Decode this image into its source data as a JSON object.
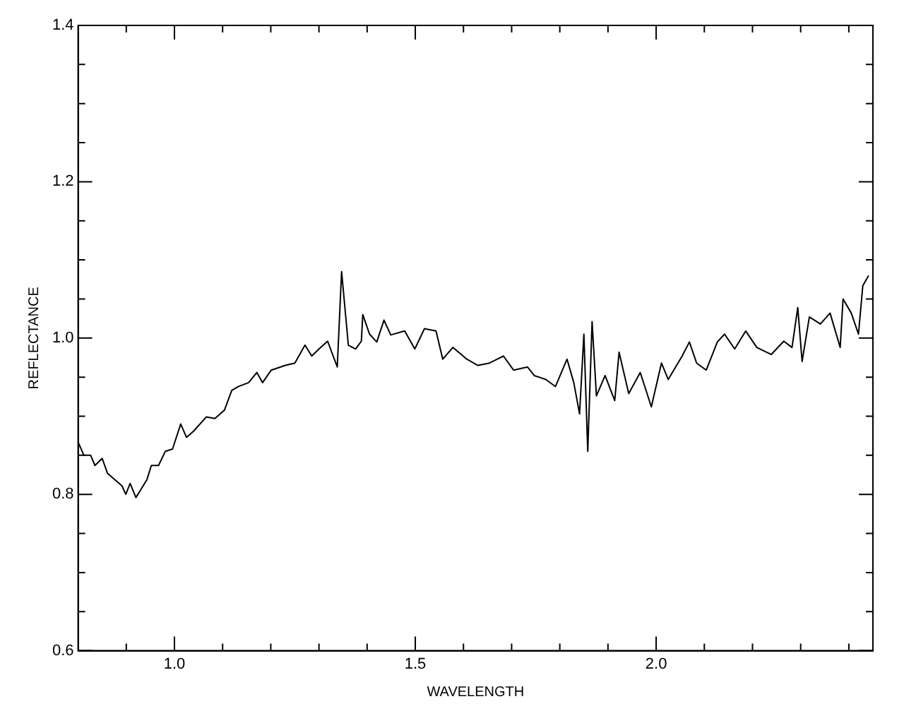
{
  "chart_data": {
    "type": "line",
    "xlabel": "WAVELENGTH",
    "ylabel": "REFLECTANCE",
    "xlim": [
      0.8,
      2.45
    ],
    "ylim": [
      0.6,
      1.4
    ],
    "xticks": [
      {
        "value": 0.9,
        "label": null
      },
      {
        "value": 1.0,
        "label": "1.0"
      },
      {
        "value": 1.1,
        "label": null
      },
      {
        "value": 1.2,
        "label": null
      },
      {
        "value": 1.3,
        "label": null
      },
      {
        "value": 1.4,
        "label": null
      },
      {
        "value": 1.5,
        "label": "1.5"
      },
      {
        "value": 1.6,
        "label": null
      },
      {
        "value": 1.7,
        "label": null
      },
      {
        "value": 1.8,
        "label": null
      },
      {
        "value": 1.9,
        "label": null
      },
      {
        "value": 2.0,
        "label": "2.0"
      },
      {
        "value": 2.1,
        "label": null
      },
      {
        "value": 2.2,
        "label": null
      },
      {
        "value": 2.3,
        "label": null
      },
      {
        "value": 2.4,
        "label": null
      }
    ],
    "yticks": [
      {
        "value": 0.6,
        "label": "0.6"
      },
      {
        "value": 0.65,
        "label": null
      },
      {
        "value": 0.7,
        "label": null
      },
      {
        "value": 0.75,
        "label": null
      },
      {
        "value": 0.8,
        "label": "0.8"
      },
      {
        "value": 0.85,
        "label": null
      },
      {
        "value": 0.9,
        "label": null
      },
      {
        "value": 0.95,
        "label": null
      },
      {
        "value": 1.0,
        "label": "1.0"
      },
      {
        "value": 1.05,
        "label": null
      },
      {
        "value": 1.1,
        "label": null
      },
      {
        "value": 1.15,
        "label": null
      },
      {
        "value": 1.2,
        "label": "1.2"
      },
      {
        "value": 1.25,
        "label": null
      },
      {
        "value": 1.3,
        "label": null
      },
      {
        "value": 1.35,
        "label": null
      },
      {
        "value": 1.4,
        "label": "1.4"
      }
    ],
    "grid": false,
    "legend": false,
    "marker": "none",
    "line_style": "solid",
    "series": [
      {
        "color": "#000000",
        "x": [
          0.8,
          0.812,
          0.826,
          0.835,
          0.85,
          0.861,
          0.876,
          0.891,
          0.899,
          0.908,
          0.92,
          0.929,
          0.943,
          0.952,
          0.967,
          0.981,
          0.996,
          1.013,
          1.025,
          1.04,
          1.066,
          1.084,
          1.104,
          1.119,
          1.133,
          1.154,
          1.171,
          1.183,
          1.201,
          1.23,
          1.25,
          1.271,
          1.285,
          1.3,
          1.318,
          1.338,
          1.347,
          1.361,
          1.376,
          1.388,
          1.391,
          1.405,
          1.42,
          1.435,
          1.449,
          1.478,
          1.499,
          1.519,
          1.543,
          1.557,
          1.578,
          1.607,
          1.63,
          1.654,
          1.683,
          1.704,
          1.733,
          1.747,
          1.771,
          1.791,
          1.815,
          1.829,
          1.841,
          1.85,
          1.858,
          1.867,
          1.876,
          1.894,
          1.914,
          1.923,
          1.943,
          1.967,
          1.99,
          2.011,
          2.025,
          2.054,
          2.069,
          2.084,
          2.104,
          2.127,
          2.142,
          2.163,
          2.186,
          2.209,
          2.239,
          2.265,
          2.282,
          2.294,
          2.303,
          2.318,
          2.341,
          2.361,
          2.382,
          2.388,
          2.405,
          2.42,
          2.429,
          2.441
        ],
        "values": [
          0.867,
          0.85,
          0.85,
          0.837,
          0.846,
          0.827,
          0.819,
          0.811,
          0.8,
          0.814,
          0.796,
          0.805,
          0.819,
          0.837,
          0.837,
          0.855,
          0.858,
          0.89,
          0.873,
          0.881,
          0.899,
          0.897,
          0.908,
          0.933,
          0.938,
          0.943,
          0.956,
          0.943,
          0.959,
          0.965,
          0.968,
          0.991,
          0.977,
          0.986,
          0.996,
          0.963,
          1.085,
          0.991,
          0.986,
          0.996,
          1.03,
          1.005,
          0.995,
          1.023,
          1.004,
          1.009,
          0.986,
          1.012,
          1.009,
          0.973,
          0.988,
          0.973,
          0.965,
          0.968,
          0.977,
          0.959,
          0.963,
          0.952,
          0.947,
          0.938,
          0.973,
          0.943,
          0.903,
          1.005,
          0.855,
          1.021,
          0.926,
          0.952,
          0.92,
          0.982,
          0.929,
          0.956,
          0.912,
          0.968,
          0.947,
          0.977,
          0.995,
          0.968,
          0.959,
          0.995,
          1.005,
          0.986,
          1.009,
          0.988,
          0.979,
          0.996,
          0.988,
          1.039,
          0.97,
          1.027,
          1.018,
          1.032,
          0.988,
          1.05,
          1.032,
          1.005,
          1.067,
          1.08
        ]
      }
    ]
  }
}
